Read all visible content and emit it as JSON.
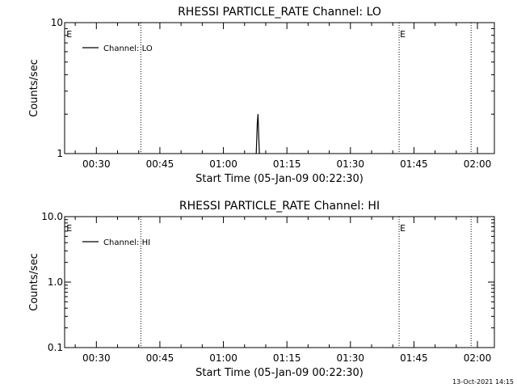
{
  "timestamp": "13-Oct-2021 14:15",
  "chart_data": [
    {
      "type": "line",
      "title": "RHESSI PARTICLE_RATE Channel: LO",
      "xlabel": "Start Time (05-Jan-09 00:22:30)",
      "ylabel": "Counts/sec",
      "y_scale": "log",
      "xlim": [
        "00:22:30",
        "02:04:00"
      ],
      "ylim": [
        1,
        10
      ],
      "x_ticks": [
        "00:30",
        "00:45",
        "01:00",
        "01:15",
        "01:30",
        "01:45",
        "02:00"
      ],
      "y_ticks": [
        {
          "value": 1,
          "label": "1"
        },
        {
          "value": 10,
          "label": "10"
        }
      ],
      "legend": {
        "position": "top-left",
        "entries": [
          "Channel: LO"
        ]
      },
      "series": [
        {
          "name": "Channel: LO",
          "color": "#000000",
          "points": [
            {
              "x": "01:07:45",
              "y": 1.0
            },
            {
              "x": "01:08:00",
              "y": 1.7
            },
            {
              "x": "01:08:10",
              "y": 2.0
            },
            {
              "x": "01:08:20",
              "y": 1.4
            },
            {
              "x": "01:08:30",
              "y": 1.0
            }
          ]
        }
      ],
      "markers": [
        {
          "x": "00:22:45",
          "label": "E",
          "line": false
        },
        {
          "x": "00:40:30",
          "label": "",
          "line": true
        },
        {
          "x": "01:41:30",
          "label": "E",
          "line": true
        },
        {
          "x": "01:58:30",
          "label": "",
          "line": true
        }
      ],
      "grid": false
    },
    {
      "type": "line",
      "title": "RHESSI PARTICLE_RATE Channel: HI",
      "xlabel": "Start Time (05-Jan-09 00:22:30)",
      "ylabel": "Counts/sec",
      "y_scale": "log",
      "xlim": [
        "00:22:30",
        "02:04:00"
      ],
      "ylim": [
        0.1,
        10
      ],
      "x_ticks": [
        "00:30",
        "00:45",
        "01:00",
        "01:15",
        "01:30",
        "01:45",
        "02:00"
      ],
      "y_ticks": [
        {
          "value": 0.1,
          "label": "0.1"
        },
        {
          "value": 1,
          "label": "1.0"
        },
        {
          "value": 10,
          "label": "10.0"
        }
      ],
      "legend": {
        "position": "top-left",
        "entries": [
          "Channel: HI"
        ]
      },
      "series": [
        {
          "name": "Channel: HI",
          "color": "#000000",
          "points": []
        }
      ],
      "markers": [
        {
          "x": "00:22:45",
          "label": "E",
          "line": false
        },
        {
          "x": "00:40:30",
          "label": "",
          "line": true
        },
        {
          "x": "01:41:30",
          "label": "E",
          "line": true
        },
        {
          "x": "01:58:30",
          "label": "",
          "line": true
        }
      ],
      "grid": false
    }
  ]
}
